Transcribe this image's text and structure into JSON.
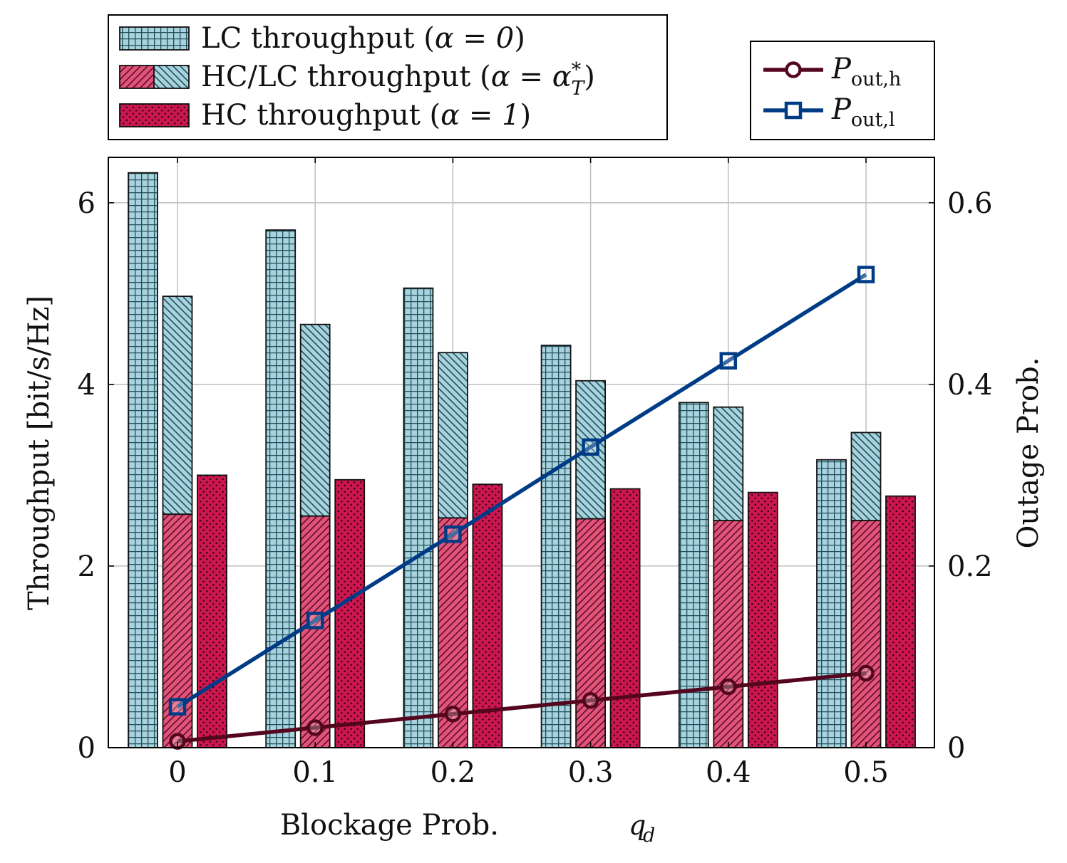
{
  "colors": {
    "lc_fill": "#a8d3de",
    "lc_hatch": "#1f4f5a",
    "hc_fill": "#e2527a",
    "hc_hatch": "#5a0f25",
    "hc_only_fill": "#cc1650",
    "hc_dot": "#3a0513",
    "p_out_h": "#55061f",
    "p_out_l": "#003c86",
    "grid": "#bfbfbf"
  },
  "chart_data": {
    "type": "bar",
    "categories": [
      "0",
      "0.1",
      "0.2",
      "0.3",
      "0.4",
      "0.5"
    ],
    "x_values": [
      0,
      0.1,
      0.2,
      0.3,
      0.4,
      0.5
    ],
    "xlabel_main": "Blockage Prob.",
    "xlabel_symbol": "q",
    "xlabel_sub": "d",
    "ylabel_left": "Throughput [bit/s/Hz]",
    "ylabel_right": "Outage Prob.",
    "ylim_left": [
      0,
      6.5
    ],
    "ylim_right": [
      0,
      0.65
    ],
    "yticks_left": [
      "0",
      "2",
      "4",
      "6"
    ],
    "yticks_left_values": [
      0,
      2,
      4,
      6
    ],
    "yticks_right": [
      "0",
      "0.2",
      "0.4",
      "0.6"
    ],
    "yticks_right_values": [
      0,
      0.2,
      0.4,
      0.6
    ],
    "grid": true,
    "bar_series": [
      {
        "name": "LC throughput (α = 0)",
        "key": "lc",
        "values": [
          6.33,
          5.7,
          5.06,
          4.43,
          3.8,
          3.17
        ]
      },
      {
        "name": "HC/LC throughput (α = α*T)",
        "key": "mixed",
        "hc_part": [
          2.57,
          2.55,
          2.53,
          2.52,
          2.5,
          2.5
        ],
        "total": [
          4.97,
          4.66,
          4.35,
          4.04,
          3.75,
          3.47
        ]
      },
      {
        "name": "HC throughput (α = 1)",
        "key": "hc",
        "values": [
          3.0,
          2.95,
          2.9,
          2.85,
          2.81,
          2.77
        ]
      }
    ],
    "line_series": [
      {
        "name": "P_out,h",
        "axis": "right",
        "marker": "circle",
        "values": [
          0.007,
          0.022,
          0.037,
          0.052,
          0.067,
          0.082
        ]
      },
      {
        "name": "P_out,l",
        "axis": "right",
        "marker": "square",
        "values": [
          0.045,
          0.14,
          0.235,
          0.331,
          0.426,
          0.521
        ]
      }
    ],
    "legend_left": [
      {
        "text_main": "LC throughput (",
        "math": "α = 0",
        "close": ")"
      },
      {
        "text_main": "HC/LC throughput (",
        "math": "α = α",
        "sup": "*",
        "sub": "T",
        "close": ")"
      },
      {
        "text_main": "HC throughput (",
        "math": "α = 1",
        "close": ")"
      }
    ],
    "legend_right": [
      {
        "symbol": "P",
        "sub": "out,h"
      },
      {
        "symbol": "P",
        "sub": "out,l"
      }
    ]
  }
}
